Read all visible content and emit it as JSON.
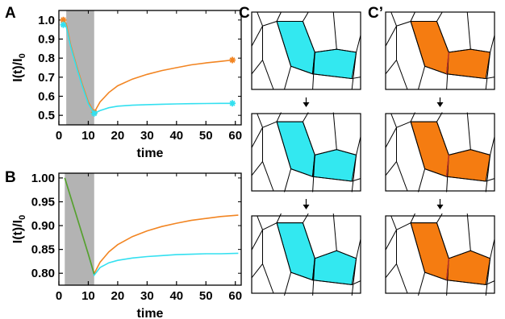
{
  "panels": {
    "A": "A",
    "B": "B",
    "C": "C",
    "C_prime": "C’"
  },
  "chart_data": [
    {
      "panel": "A",
      "type": "line",
      "xlabel": "time",
      "ylabel": "I(t)/I0",
      "xlim": [
        0,
        62
      ],
      "ylim": [
        0.45,
        1.05
      ],
      "xticks": [
        0,
        10,
        20,
        30,
        40,
        50,
        60
      ],
      "yticks": [
        0.5,
        0.6,
        0.7,
        0.8,
        0.9,
        1.0
      ],
      "ytick_labels": [
        "0.5",
        "0.6",
        "0.7",
        "0.8",
        "0.9",
        "1.0"
      ],
      "shaded_interval": [
        2.5,
        12
      ],
      "grid": false,
      "series": [
        {
          "color": "#f28522",
          "x": [
            1.5,
            2.5,
            4,
            6,
            8,
            10,
            12,
            14,
            17,
            20,
            25,
            30,
            35,
            40,
            45,
            50,
            55,
            59
          ],
          "values": [
            1.0,
            0.98,
            0.87,
            0.76,
            0.66,
            0.57,
            0.515,
            0.57,
            0.62,
            0.655,
            0.69,
            0.715,
            0.735,
            0.75,
            0.765,
            0.775,
            0.783,
            0.79
          ],
          "markers_at": [
            1.5,
            12,
            59
          ]
        },
        {
          "color": "#33e0f0",
          "x": [
            1.5,
            2.5,
            4,
            6,
            8,
            10,
            12,
            14,
            17,
            20,
            25,
            30,
            35,
            40,
            45,
            50,
            55,
            59
          ],
          "values": [
            0.975,
            0.965,
            0.86,
            0.75,
            0.65,
            0.56,
            0.51,
            0.525,
            0.54,
            0.548,
            0.553,
            0.556,
            0.558,
            0.56,
            0.561,
            0.562,
            0.563,
            0.563
          ],
          "markers_at": [
            1.5,
            12,
            59
          ]
        }
      ]
    },
    {
      "panel": "B",
      "type": "line",
      "xlabel": "time",
      "ylabel": "I(t)/I0",
      "xlim": [
        0,
        62
      ],
      "ylim": [
        0.775,
        1.01
      ],
      "xticks": [
        0,
        10,
        20,
        30,
        40,
        50,
        60
      ],
      "yticks": [
        0.8,
        0.85,
        0.9,
        0.95,
        1.0
      ],
      "ytick_labels": [
        "0.80",
        "0.85",
        "0.90",
        "0.95",
        "1.00"
      ],
      "shaded_interval": [
        2,
        12
      ],
      "grid": false,
      "series": [
        {
          "color": "#f28522",
          "x": [
            2,
            4,
            6,
            8,
            10,
            12,
            14,
            17,
            20,
            25,
            30,
            35,
            40,
            45,
            50,
            55,
            61
          ],
          "values": [
            1.0,
            0.96,
            0.92,
            0.88,
            0.84,
            0.799,
            0.823,
            0.845,
            0.86,
            0.877,
            0.889,
            0.898,
            0.905,
            0.911,
            0.915,
            0.919,
            0.922
          ]
        },
        {
          "color": "#33e0f0",
          "x": [
            2,
            4,
            6,
            8,
            10,
            12,
            14,
            17,
            20,
            25,
            30,
            35,
            40,
            45,
            50,
            55,
            61
          ],
          "values": [
            1.0,
            0.96,
            0.92,
            0.88,
            0.84,
            0.796,
            0.812,
            0.822,
            0.827,
            0.832,
            0.835,
            0.837,
            0.839,
            0.84,
            0.841,
            0.841,
            0.842
          ]
        },
        {
          "color": "#5a9e2a",
          "x": [
            2,
            4,
            6,
            8,
            10,
            12
          ],
          "values": [
            1.0,
            0.96,
            0.92,
            0.88,
            0.84,
            0.798
          ]
        }
      ]
    }
  ],
  "tissue": {
    "columns": [
      {
        "label_key": "C",
        "color": "#33e8f0",
        "interface": "#000000"
      },
      {
        "label_key": "C_prime",
        "color": "#f57c11",
        "interface": "#c0342a"
      }
    ],
    "arrow_glyph": "↓"
  }
}
